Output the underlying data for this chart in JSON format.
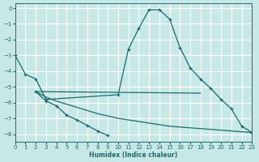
{
  "xlabel": "Humidex (Indice chaleur)",
  "bg_color": "#c8e8e8",
  "grid_color": "#ffffff",
  "line_color": "#1a6b6b",
  "xlim": [
    0,
    23
  ],
  "ylim": [
    -8.5,
    0.3
  ],
  "xticks": [
    0,
    1,
    2,
    3,
    4,
    5,
    6,
    7,
    8,
    9,
    10,
    11,
    12,
    13,
    14,
    15,
    16,
    17,
    18,
    19,
    20,
    21,
    22,
    23
  ],
  "yticks": [
    0,
    -1,
    -2,
    -3,
    -4,
    -5,
    -6,
    -7,
    -8
  ],
  "line1_x": [
    0,
    1,
    2,
    3,
    10,
    11,
    12,
    13,
    14,
    15,
    16,
    17,
    18,
    19,
    20,
    21,
    22,
    23
  ],
  "line1_y": [
    -3.0,
    -4.2,
    -4.5,
    -5.8,
    -5.5,
    -2.6,
    -1.3,
    -0.1,
    -0.1,
    -0.7,
    -2.5,
    -3.8,
    -4.5,
    -5.1,
    -5.8,
    -6.4,
    -7.5,
    -7.9
  ],
  "line2_x": [
    2,
    3,
    4,
    5,
    6,
    7,
    8,
    9
  ],
  "line2_y": [
    -5.3,
    -5.9,
    -6.2,
    -6.8,
    -7.1,
    -7.45,
    -7.8,
    -8.1
  ],
  "line3_x": [
    2,
    18
  ],
  "line3_y": [
    -5.3,
    -5.4
  ],
  "line4_x": [
    2,
    3,
    4,
    5,
    6,
    7,
    8,
    9,
    10,
    11,
    12,
    13,
    14,
    15,
    16,
    17,
    18,
    19,
    20,
    21,
    22,
    23
  ],
  "line4_y": [
    -5.3,
    -5.65,
    -5.9,
    -6.1,
    -6.3,
    -6.5,
    -6.7,
    -6.85,
    -7.0,
    -7.1,
    -7.2,
    -7.3,
    -7.4,
    -7.5,
    -7.55,
    -7.6,
    -7.65,
    -7.7,
    -7.75,
    -7.8,
    -7.85,
    -7.9
  ]
}
